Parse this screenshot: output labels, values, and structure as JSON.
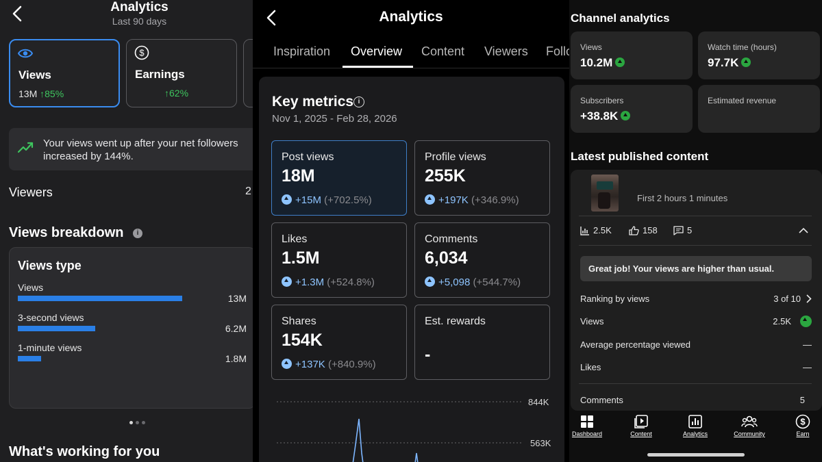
{
  "panel1": {
    "title": "Analytics",
    "subtitle": "Last 90 days",
    "cards": [
      {
        "label": "Views",
        "value": "13M",
        "change": "↑85%",
        "icon": "eye-icon"
      },
      {
        "label": "Earnings",
        "value": "",
        "change": "↑62%",
        "icon": "dollar-icon"
      }
    ],
    "insight": "Your views went up after your net followers increased by 144%.",
    "viewers_label": "Viewers",
    "viewers_value": "2",
    "views_breakdown_title": "Views breakdown",
    "views_type_title": "Views type",
    "views_type_rows": [
      {
        "name": "Views",
        "value": "13M",
        "fraction": 1.0
      },
      {
        "name": "3-second views",
        "value": "6.2M",
        "fraction": 0.47
      },
      {
        "name": "1-minute views",
        "value": "1.8M",
        "fraction": 0.14
      }
    ],
    "what_working_title": "What's working for you",
    "accent_color": "#3a8cf0",
    "positive_color": "#3ec55e"
  },
  "panel2": {
    "title": "Analytics",
    "tabs": [
      "Inspiration",
      "Overview",
      "Content",
      "Viewers",
      "Follo"
    ],
    "active_tab": "Overview",
    "key_metrics_title": "Key metrics",
    "date_range": "Nov 1, 2025 - Feb 28, 2026",
    "metrics": [
      {
        "label": "Post views",
        "value": "18M",
        "abs": "+15M",
        "pct": "(+702.5%)"
      },
      {
        "label": "Profile views",
        "value": "255K",
        "abs": "+197K",
        "pct": "(+346.9%)"
      },
      {
        "label": "Likes",
        "value": "1.5M",
        "abs": "+1.3M",
        "pct": "(+524.8%)"
      },
      {
        "label": "Comments",
        "value": "6,034",
        "abs": "+5,098",
        "pct": "(+544.7%)"
      },
      {
        "label": "Shares",
        "value": "154K",
        "abs": "+137K",
        "pct": "(+840.9%)"
      },
      {
        "label": "Est. rewards",
        "value": "-",
        "abs": "",
        "pct": ""
      }
    ],
    "chart_data": {
      "type": "line",
      "y_tick_labels": [
        "844K",
        "563K"
      ]
    }
  },
  "panel3": {
    "channel_title": "Channel analytics",
    "cards": [
      {
        "label": "Views",
        "value": "10.2M",
        "up": true
      },
      {
        "label": "Watch time (hours)",
        "value": "97.7K",
        "up": true
      },
      {
        "label": "Subscribers",
        "value": "+38.8K",
        "up": true
      },
      {
        "label": "Estimated revenue",
        "value": "",
        "up": false
      }
    ],
    "latest_title": "Latest published content",
    "first_time": "First 2 hours 1 minutes",
    "stats": {
      "views": "2.5K",
      "likes": "158",
      "comments": "5"
    },
    "great_msg": "Great job! Your views are higher than usual.",
    "rows": [
      {
        "label": "Ranking by views",
        "value": "3 of 10"
      },
      {
        "label": "Views",
        "value": "2.5K"
      },
      {
        "label": "Average percentage viewed",
        "value": "—"
      },
      {
        "label": "Likes",
        "value": "—"
      },
      {
        "label": "Comments",
        "value": "5"
      }
    ],
    "nav": [
      "Dashboard",
      "Content",
      "Analytics",
      "Community",
      "Earn"
    ]
  }
}
